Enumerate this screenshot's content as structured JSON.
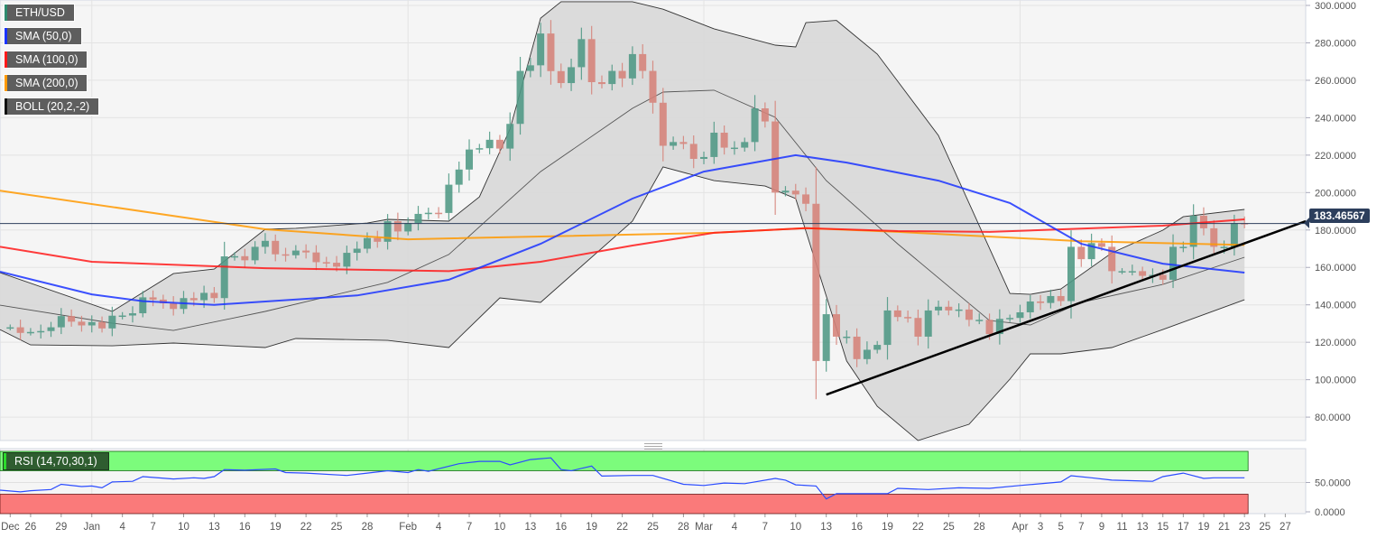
{
  "legend": [
    {
      "label": "ETH/USD",
      "color": "#2e8b6e"
    },
    {
      "label": "SMA (50,0)",
      "color": "#1a33ff"
    },
    {
      "label": "SMA (100,0)",
      "color": "#ff1a1a"
    },
    {
      "label": "SMA (200,0)",
      "color": "#ff9900"
    },
    {
      "label": "BOLL (20,2,-2)",
      "color": "#111111"
    }
  ],
  "last_price_label": "183.46567",
  "rsi_label": "RSI (14,70,30,1)",
  "chart_data": {
    "type": "candlestick",
    "instrument": "ETH/USD",
    "interval": "1D",
    "start_date": "2019-12-24",
    "first_open": 128,
    "close": [
      128,
      125,
      125.5,
      126,
      128,
      134,
      131,
      129,
      130.8,
      127.4,
      134.2,
      134.3,
      135.5,
      144,
      142.8,
      140.8,
      137.8,
      143.6,
      142.5,
      146.4,
      143.6,
      165.9,
      166,
      163.8,
      171,
      174.2,
      167,
      166.5,
      169,
      168,
      162.8,
      162.5,
      160.4,
      167.8,
      170,
      175.7,
      173.7,
      184.7,
      179.2,
      183.7,
      188.6,
      189.2,
      189.1,
      204.2,
      212.3,
      223,
      223.7,
      228.2,
      223.5,
      236.7,
      265,
      268,
      285,
      264.9,
      258.5,
      267,
      282,
      259,
      258,
      265,
      261,
      274,
      265,
      248,
      225,
      227,
      226,
      218,
      219,
      232,
      224,
      224,
      227,
      245,
      238,
      200,
      201,
      199,
      194,
      110,
      135,
      123,
      123,
      111,
      116,
      118.6,
      137,
      133.5,
      133,
      123,
      137,
      139,
      137,
      137.5,
      132,
      132,
      124.4,
      132.5,
      133,
      136,
      141.8,
      141,
      144.7,
      142,
      171,
      164.4,
      173,
      171,
      158,
      158,
      158,
      155.5,
      156,
      153.4,
      171,
      171,
      187.6,
      180.9,
      171,
      171,
      183.7,
      183.5
    ],
    "last_price": 183.46567,
    "xlim": [
      "2019-12-23",
      "2020-04-29"
    ],
    "ylim": [
      67.5,
      302.9
    ],
    "y_ticks": [
      "80.0000",
      "100.0000",
      "120.0000",
      "140.0000",
      "160.0000",
      "180.0000",
      "200.0000",
      "220.0000",
      "240.0000",
      "260.0000",
      "280.0000",
      "300.0000"
    ],
    "x_ticks": [
      {
        "date": "2019-12-24",
        "label": "Dec"
      },
      {
        "date": "2019-12-26",
        "label": "26"
      },
      {
        "date": "2019-12-29",
        "label": "29"
      },
      {
        "date": "2020-01-01",
        "label": "Jan"
      },
      {
        "date": "2020-01-04",
        "label": "4"
      },
      {
        "date": "2020-01-07",
        "label": "7"
      },
      {
        "date": "2020-01-10",
        "label": "10"
      },
      {
        "date": "2020-01-13",
        "label": "13"
      },
      {
        "date": "2020-01-16",
        "label": "16"
      },
      {
        "date": "2020-01-19",
        "label": "19"
      },
      {
        "date": "2020-01-22",
        "label": "22"
      },
      {
        "date": "2020-01-25",
        "label": "25"
      },
      {
        "date": "2020-01-28",
        "label": "28"
      },
      {
        "date": "2020-02-01",
        "label": "Feb"
      },
      {
        "date": "2020-02-04",
        "label": "4"
      },
      {
        "date": "2020-02-07",
        "label": "7"
      },
      {
        "date": "2020-02-10",
        "label": "10"
      },
      {
        "date": "2020-02-13",
        "label": "13"
      },
      {
        "date": "2020-02-16",
        "label": "16"
      },
      {
        "date": "2020-02-19",
        "label": "19"
      },
      {
        "date": "2020-02-22",
        "label": "22"
      },
      {
        "date": "2020-02-25",
        "label": "25"
      },
      {
        "date": "2020-02-28",
        "label": "28"
      },
      {
        "date": "2020-03-01",
        "label": "Mar"
      },
      {
        "date": "2020-03-04",
        "label": "4"
      },
      {
        "date": "2020-03-07",
        "label": "7"
      },
      {
        "date": "2020-03-10",
        "label": "10"
      },
      {
        "date": "2020-03-13",
        "label": "13"
      },
      {
        "date": "2020-03-16",
        "label": "16"
      },
      {
        "date": "2020-03-19",
        "label": "19"
      },
      {
        "date": "2020-03-22",
        "label": "22"
      },
      {
        "date": "2020-03-25",
        "label": "25"
      },
      {
        "date": "2020-03-28",
        "label": "28"
      },
      {
        "date": "2020-04-01",
        "label": "Apr"
      },
      {
        "date": "2020-04-03",
        "label": "3"
      },
      {
        "date": "2020-04-05",
        "label": "5"
      },
      {
        "date": "2020-04-07",
        "label": "7"
      },
      {
        "date": "2020-04-09",
        "label": "9"
      },
      {
        "date": "2020-04-11",
        "label": "11"
      },
      {
        "date": "2020-04-13",
        "label": "13"
      },
      {
        "date": "2020-04-15",
        "label": "15"
      },
      {
        "date": "2020-04-17",
        "label": "17"
      },
      {
        "date": "2020-04-19",
        "label": "19"
      },
      {
        "date": "2020-04-21",
        "label": "21"
      },
      {
        "date": "2020-04-23",
        "label": "23"
      },
      {
        "date": "2020-04-25",
        "label": "25"
      },
      {
        "date": "2020-04-27",
        "label": "27"
      }
    ],
    "month_gridlines": [
      "2020-01-01",
      "2020-02-01",
      "2020-03-01",
      "2020-04-01"
    ],
    "colors": {
      "up": "#4f9985",
      "down": "#d6837a",
      "background": "#f5f5f5",
      "band_fill": "#d9d9d9"
    },
    "indicators": {
      "sma50": {
        "color": "#1a33ff",
        "points": [
          [
            "2019-12-23",
            157.7
          ],
          [
            "2020-01-01",
            145.6
          ],
          [
            "2020-01-06",
            142
          ],
          [
            "2020-01-13",
            140
          ],
          [
            "2020-01-27",
            145
          ],
          [
            "2020-02-05",
            153.4
          ],
          [
            "2020-02-14",
            172.6
          ],
          [
            "2020-02-23",
            196.8
          ],
          [
            "2020-03-01",
            211.2
          ],
          [
            "2020-03-10",
            220
          ],
          [
            "2020-03-15",
            216
          ],
          [
            "2020-03-24",
            206.4
          ],
          [
            "2020-03-31",
            194.4
          ],
          [
            "2020-04-07",
            172.6
          ],
          [
            "2020-04-15",
            162
          ],
          [
            "2020-04-23",
            157.2
          ]
        ]
      },
      "sma100": {
        "color": "#ff1a1a",
        "points": [
          [
            "2019-12-23",
            171
          ],
          [
            "2020-01-01",
            163
          ],
          [
            "2020-01-18",
            159.6
          ],
          [
            "2020-02-05",
            158
          ],
          [
            "2020-02-14",
            163
          ],
          [
            "2020-02-23",
            171.7
          ],
          [
            "2020-03-02",
            178.5
          ],
          [
            "2020-03-11",
            181
          ],
          [
            "2020-03-20",
            179.4
          ],
          [
            "2020-03-29",
            179
          ],
          [
            "2020-04-15",
            182.3
          ],
          [
            "2020-04-23",
            185.7
          ]
        ]
      },
      "sma200": {
        "color": "#ff9900",
        "points": [
          [
            "2019-12-23",
            201
          ],
          [
            "2020-01-18",
            180.4
          ],
          [
            "2020-02-01",
            175
          ],
          [
            "2020-03-02",
            178.5
          ],
          [
            "2020-03-11",
            181
          ],
          [
            "2020-03-20",
            179
          ],
          [
            "2020-04-07",
            174
          ],
          [
            "2020-04-23",
            172
          ]
        ]
      },
      "boll_upper": {
        "color": "#333333",
        "points": [
          [
            "2019-12-23",
            157.2
          ],
          [
            "2020-01-03",
            136.5
          ],
          [
            "2020-01-09",
            156.7
          ],
          [
            "2020-01-13",
            159.1
          ],
          [
            "2020-01-18",
            180.4
          ],
          [
            "2020-01-21",
            180.9
          ],
          [
            "2020-01-28",
            183.7
          ],
          [
            "2020-01-30",
            185.7
          ],
          [
            "2020-02-05",
            184.7
          ],
          [
            "2020-02-08",
            197.7
          ],
          [
            "2020-02-11",
            233.9
          ],
          [
            "2020-02-14",
            293.2
          ],
          [
            "2020-02-16",
            302
          ],
          [
            "2020-02-23",
            302
          ],
          [
            "2020-02-26",
            298
          ],
          [
            "2020-03-02",
            287.5
          ],
          [
            "2020-03-08",
            278.8
          ],
          [
            "2020-03-10",
            277.8
          ],
          [
            "2020-03-11",
            290.8
          ],
          [
            "2020-03-14",
            292
          ],
          [
            "2020-03-18",
            274
          ],
          [
            "2020-03-24",
            230.5
          ],
          [
            "2020-03-31",
            146.1
          ],
          [
            "2020-04-02",
            145.6
          ],
          [
            "2020-04-05",
            148.5
          ],
          [
            "2020-04-10",
            167.8
          ],
          [
            "2020-04-15",
            179.9
          ],
          [
            "2020-04-17",
            187.1
          ],
          [
            "2020-04-23",
            191
          ]
        ]
      },
      "boll_middle": {
        "color": "#555555",
        "points": [
          [
            "2019-12-23",
            139.8
          ],
          [
            "2020-01-03",
            130.2
          ],
          [
            "2020-01-09",
            126.3
          ],
          [
            "2020-01-18",
            136.5
          ],
          [
            "2020-01-30",
            152
          ],
          [
            "2020-02-05",
            166.9
          ],
          [
            "2020-02-14",
            211.2
          ],
          [
            "2020-02-23",
            245
          ],
          [
            "2020-02-26",
            253.7
          ],
          [
            "2020-03-02",
            254.7
          ],
          [
            "2020-03-08",
            240.2
          ],
          [
            "2020-03-13",
            206.4
          ],
          [
            "2020-03-20",
            172.6
          ],
          [
            "2020-03-29",
            131.6
          ],
          [
            "2020-04-02",
            129.2
          ],
          [
            "2020-04-07",
            141.3
          ],
          [
            "2020-04-15",
            150.9
          ],
          [
            "2020-04-23",
            165.4
          ]
        ]
      },
      "boll_lower": {
        "color": "#333333",
        "points": [
          [
            "2019-12-23",
            126.8
          ],
          [
            "2019-12-26",
            118.6
          ],
          [
            "2020-01-03",
            118.1
          ],
          [
            "2020-01-09",
            119.6
          ],
          [
            "2020-01-18",
            117.2
          ],
          [
            "2020-01-21",
            122
          ],
          [
            "2020-01-30",
            121
          ],
          [
            "2020-02-05",
            117.2
          ],
          [
            "2020-02-10",
            143.7
          ],
          [
            "2020-02-14",
            141.3
          ],
          [
            "2020-02-23",
            184.7
          ],
          [
            "2020-02-26",
            213.7
          ],
          [
            "2020-03-02",
            206.4
          ],
          [
            "2020-03-07",
            203.5
          ],
          [
            "2020-03-10",
            196.8
          ],
          [
            "2020-03-15",
            110
          ],
          [
            "2020-03-18",
            85.8
          ],
          [
            "2020-03-22",
            67.5
          ],
          [
            "2020-03-27",
            76.2
          ],
          [
            "2020-03-31",
            100.3
          ],
          [
            "2020-04-02",
            113.8
          ],
          [
            "2020-04-05",
            113.8
          ],
          [
            "2020-04-10",
            117.2
          ],
          [
            "2020-04-15",
            126.8
          ],
          [
            "2020-04-23",
            142.7
          ]
        ]
      }
    },
    "trendline": [
      [
        "2020-03-13",
        92
      ],
      [
        "2020-04-29",
        184.7
      ]
    ],
    "rsi": {
      "ylim": [
        0,
        100
      ],
      "y_ticks": [
        "0.0000",
        "50.0000"
      ],
      "overbought": 70,
      "oversold": 30,
      "colors": {
        "line": "#2b4cff",
        "overbought_band": "#7cfc7c",
        "oversold_band": "#fa7a7a"
      },
      "points": [
        [
          "2019-12-23",
          37
        ],
        [
          "2019-12-25",
          34
        ],
        [
          "2019-12-26",
          36
        ],
        [
          "2019-12-28",
          38
        ],
        [
          "2019-12-29",
          47
        ],
        [
          "2019-12-31",
          43
        ],
        [
          "2020-01-01",
          44
        ],
        [
          "2020-01-02",
          41
        ],
        [
          "2020-01-03",
          51
        ],
        [
          "2020-01-05",
          52
        ],
        [
          "2020-01-06",
          60
        ],
        [
          "2020-01-09",
          56
        ],
        [
          "2020-01-11",
          58
        ],
        [
          "2020-01-12",
          57
        ],
        [
          "2020-01-13",
          60
        ],
        [
          "2020-01-14",
          72
        ],
        [
          "2020-01-16",
          71
        ],
        [
          "2020-01-19",
          73
        ],
        [
          "2020-01-20",
          67
        ],
        [
          "2020-01-22",
          66
        ],
        [
          "2020-01-26",
          62
        ],
        [
          "2020-01-28",
          66
        ],
        [
          "2020-01-30",
          70
        ],
        [
          "2020-02-01",
          67
        ],
        [
          "2020-02-02",
          72
        ],
        [
          "2020-02-03",
          69
        ],
        [
          "2020-02-06",
          82
        ],
        [
          "2020-02-08",
          86
        ],
        [
          "2020-02-10",
          86
        ],
        [
          "2020-02-11",
          80
        ],
        [
          "2020-02-13",
          89
        ],
        [
          "2020-02-15",
          92
        ],
        [
          "2020-02-16",
          72
        ],
        [
          "2020-02-17",
          70
        ],
        [
          "2020-02-19",
          78
        ],
        [
          "2020-02-20",
          61
        ],
        [
          "2020-02-23",
          62
        ],
        [
          "2020-02-25",
          62
        ],
        [
          "2020-02-28",
          47
        ],
        [
          "2020-03-01",
          45
        ],
        [
          "2020-03-03",
          49
        ],
        [
          "2020-03-05",
          48
        ],
        [
          "2020-03-08",
          57
        ],
        [
          "2020-03-09",
          54
        ],
        [
          "2020-03-10",
          46
        ],
        [
          "2020-03-12",
          44
        ],
        [
          "2020-03-13",
          22
        ],
        [
          "2020-03-14",
          31
        ],
        [
          "2020-03-19",
          31
        ],
        [
          "2020-03-20",
          40
        ],
        [
          "2020-03-23",
          38
        ],
        [
          "2020-03-26",
          41
        ],
        [
          "2020-03-29",
          40
        ],
        [
          "2020-04-01",
          45
        ],
        [
          "2020-04-05",
          51
        ],
        [
          "2020-04-06",
          61.5
        ],
        [
          "2020-04-08",
          58
        ],
        [
          "2020-04-10",
          54
        ],
        [
          "2020-04-14",
          52
        ],
        [
          "2020-04-15",
          60
        ],
        [
          "2020-04-17",
          66
        ],
        [
          "2020-04-19",
          57
        ],
        [
          "2020-04-20",
          58
        ],
        [
          "2020-04-23",
          58
        ]
      ]
    }
  }
}
